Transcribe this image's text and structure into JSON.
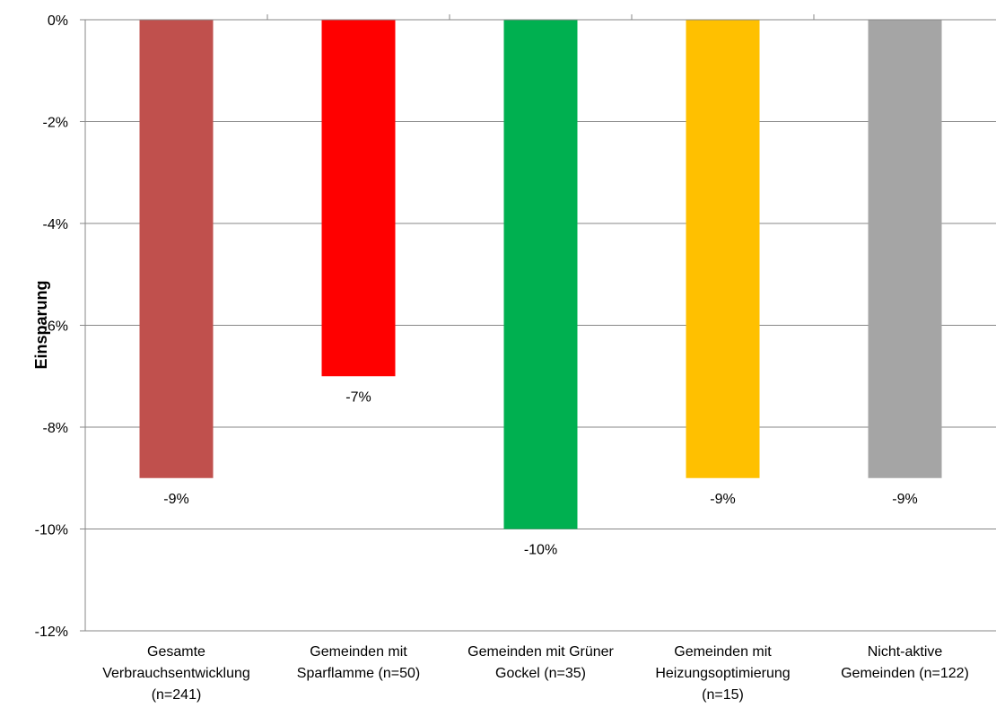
{
  "chart_data": {
    "type": "bar",
    "categories": [
      [
        "Gesamte",
        "Verbrauchsentwicklung",
        "(n=241)"
      ],
      [
        "Gemeinden mit",
        "Sparflamme (n=50)"
      ],
      [
        "Gemeinden mit Grüner",
        "Gockel (n=35)"
      ],
      [
        "Gemeinden mit",
        "Heizungsoptimierung",
        "(n=15)"
      ],
      [
        "Nicht-aktive",
        "Gemeinden (n=122)"
      ]
    ],
    "values": [
      -9,
      -7,
      -10,
      -9,
      -9
    ],
    "data_labels": [
      "-9%",
      "-7%",
      "-10%",
      "-9%",
      "-9%"
    ],
    "colors": [
      "#c0504d",
      "#ff0000",
      "#00b050",
      "#ffc000",
      "#a5a5a5"
    ],
    "ylabel": "Einsparung",
    "ylim": [
      -12,
      0
    ],
    "yticks": [
      0,
      -2,
      -4,
      -6,
      -8,
      -10,
      -12
    ],
    "ytick_labels": [
      "0%",
      "-2%",
      "-4%",
      "-6%",
      "-8%",
      "-10%",
      "-12%"
    ],
    "grid": true,
    "legend": "none"
  }
}
